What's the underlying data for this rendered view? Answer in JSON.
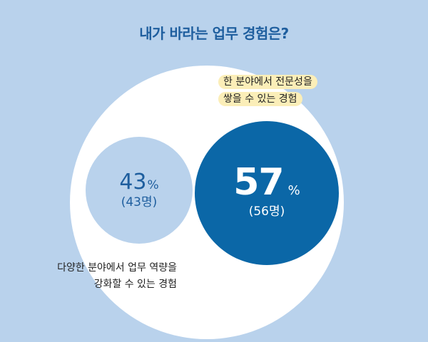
{
  "title": "내가 바라는 업무 경험은?",
  "chart_data": {
    "type": "bubble",
    "title": "내가 바라는 업무 경험은?",
    "categories": [
      "한 분야에서 전문성을 쌓을 수 있는 경험",
      "다양한 분야에서 업무 역량을 강화할 수 있는 경험"
    ],
    "values_percent": [
      57,
      43
    ],
    "counts": [
      56,
      43
    ],
    "items": [
      {
        "label_line1": "한 분야에서 전문성을",
        "label_line2": "쌓을 수 있는 경험",
        "percent": "57",
        "unit": "%",
        "count": "(56명)",
        "color": "#0b67a7"
      },
      {
        "label_line1": "다양한 분야에서 업무 역량을",
        "label_line2": "강화할 수 있는 경험",
        "percent": "43",
        "unit": "%",
        "count": "(43명)",
        "color": "#b9d2ec"
      }
    ]
  },
  "colors": {
    "background": "#b9d2ec",
    "title": "#1e5e9e",
    "highlight": "#fbeeb8",
    "big_circle": "#0b67a7",
    "small_circle": "#b9d2ec"
  }
}
